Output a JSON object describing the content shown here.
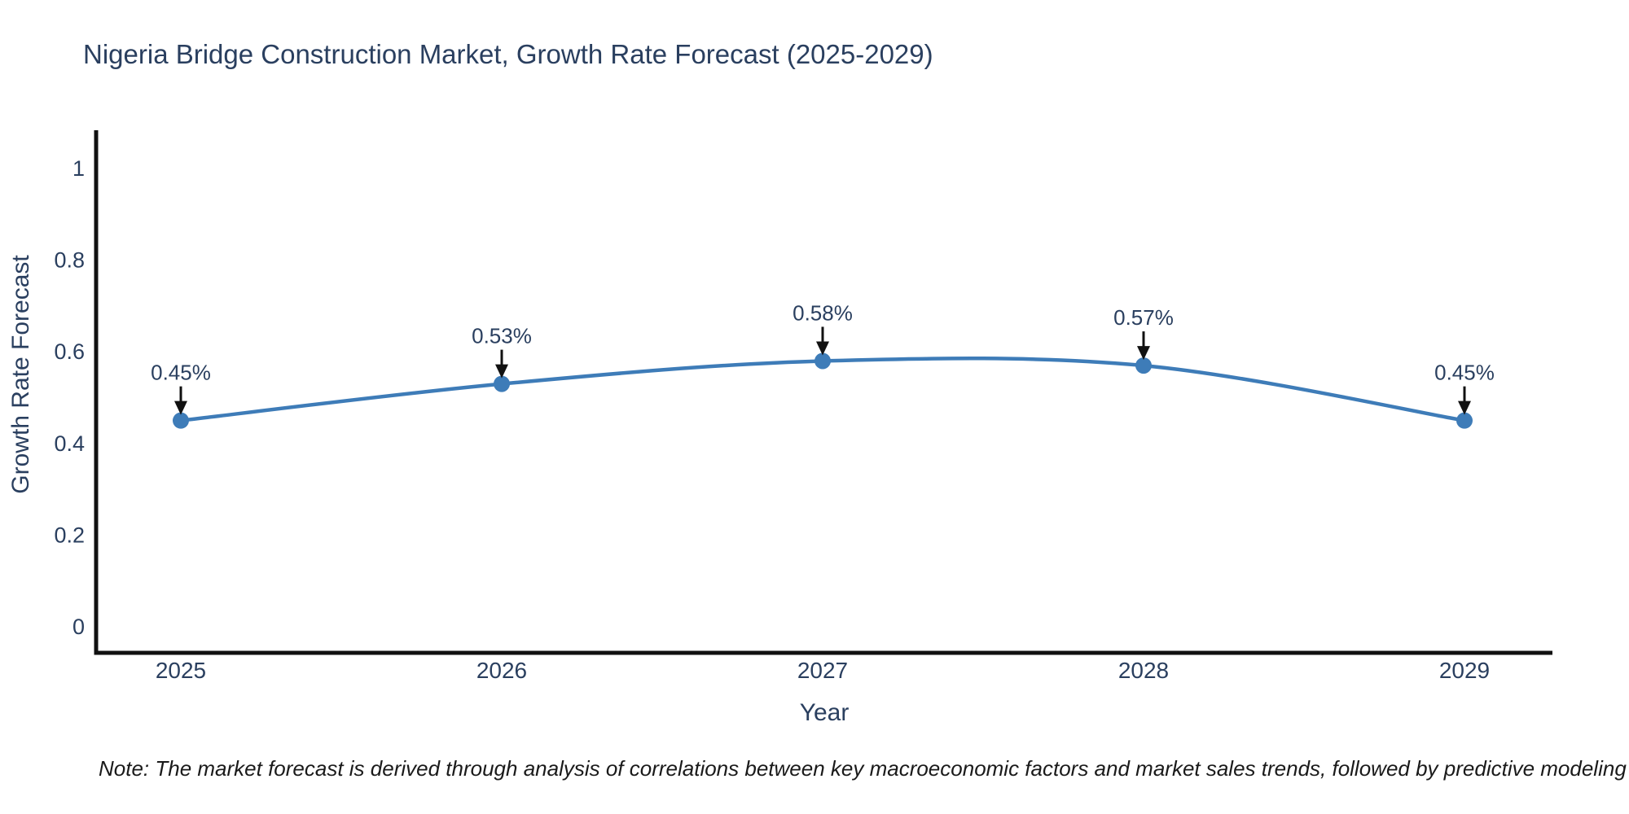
{
  "note": "Note: The market forecast is derived through analysis of correlations between key macroeconomic factors and market sales trends, followed by predictive modeling to project future sales",
  "chart_data": {
    "type": "line",
    "title": "Nigeria Bridge Construction Market, Growth Rate Forecast (2025-2029)",
    "xlabel": "Year",
    "ylabel": "Growth Rate Forecast",
    "x": [
      2025,
      2026,
      2027,
      2028,
      2029
    ],
    "y": [
      0.45,
      0.53,
      0.58,
      0.57,
      0.45
    ],
    "point_labels": [
      "0.45%",
      "0.53%",
      "0.58%",
      "0.57%",
      "0.45%"
    ],
    "yticks": [
      "0",
      "0.2",
      "0.4",
      "0.6",
      "0.8",
      "1"
    ],
    "ylim": [
      0,
      1.08
    ],
    "line_shape": "spline",
    "grid": false,
    "legend": "none",
    "annotations_have_arrows": true,
    "colors": {
      "line": "#3e7cb8",
      "marker": "#3e7cb8",
      "text": "#2a3f5f",
      "axis": "#111111",
      "arrow": "#111111",
      "background": "#ffffff"
    }
  }
}
